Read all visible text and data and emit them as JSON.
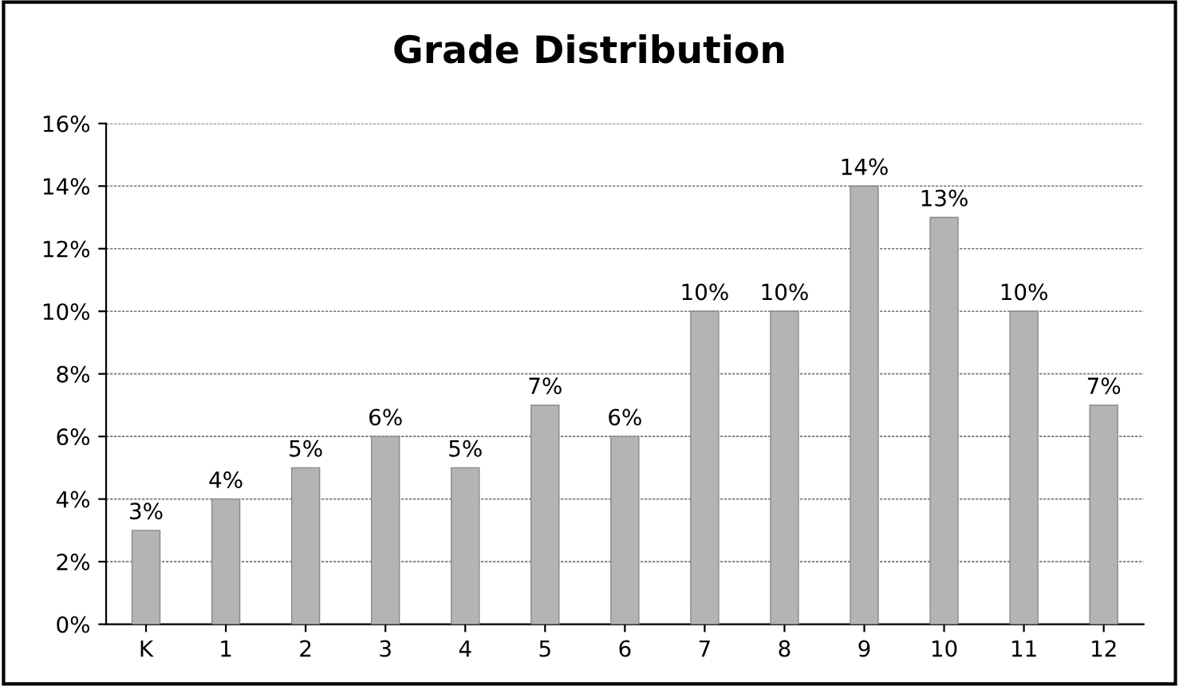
{
  "chart_data": {
    "type": "bar",
    "title": "Grade Distribution",
    "categories": [
      "K",
      "1",
      "2",
      "3",
      "4",
      "5",
      "6",
      "7",
      "8",
      "9",
      "10",
      "11",
      "12"
    ],
    "values": [
      3,
      4,
      5,
      6,
      5,
      7,
      6,
      10,
      10,
      14,
      13,
      10,
      7
    ],
    "value_labels": [
      "3%",
      "4%",
      "5%",
      "6%",
      "5%",
      "7%",
      "6%",
      "10%",
      "10%",
      "14%",
      "13%",
      "10%",
      "7%"
    ],
    "color": "#b4b4b4",
    "ylim": [
      0,
      16
    ],
    "yticks": [
      {
        "value": 0,
        "label": "0%"
      },
      {
        "value": 2,
        "label": "2%"
      },
      {
        "value": 4,
        "label": "4%"
      },
      {
        "value": 6,
        "label": "6%"
      },
      {
        "value": 8,
        "label": "8%"
      },
      {
        "value": 10,
        "label": "10%"
      },
      {
        "value": 12,
        "label": "12%"
      },
      {
        "value": 14,
        "label": "14%"
      },
      {
        "value": 16,
        "label": "16%"
      }
    ],
    "grid": "y",
    "legend": false
  }
}
